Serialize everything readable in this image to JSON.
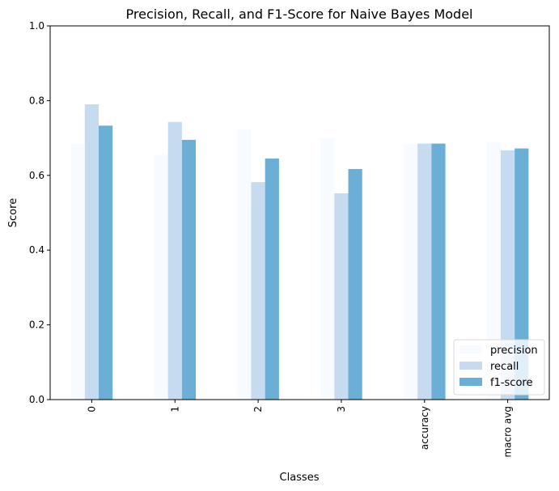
{
  "chart_data": {
    "type": "bar",
    "title": "Precision, Recall, and F1-Score for Naive Bayes Model",
    "xlabel": "Classes",
    "ylabel": "Score",
    "ylim": [
      0,
      1.0
    ],
    "yticks": [
      "0.0",
      "0.2",
      "0.4",
      "0.6",
      "0.8",
      "1.0"
    ],
    "categories": [
      "0",
      "1",
      "2",
      "3",
      "accuracy",
      "macro avg"
    ],
    "series": [
      {
        "name": "precision",
        "color": "#f7fbff",
        "values": [
          0.685,
          0.655,
          0.722,
          0.7,
          0.685,
          0.69
        ]
      },
      {
        "name": "recall",
        "color": "#c6dbef",
        "values": [
          0.79,
          0.743,
          0.582,
          0.552,
          0.685,
          0.667
        ]
      },
      {
        "name": "f1-score",
        "color": "#6baed6",
        "values": [
          0.733,
          0.695,
          0.645,
          0.617,
          0.685,
          0.672
        ]
      }
    ],
    "legend_position": "bottom-right",
    "grid": false,
    "x_tick_rotation": "vertical"
  }
}
